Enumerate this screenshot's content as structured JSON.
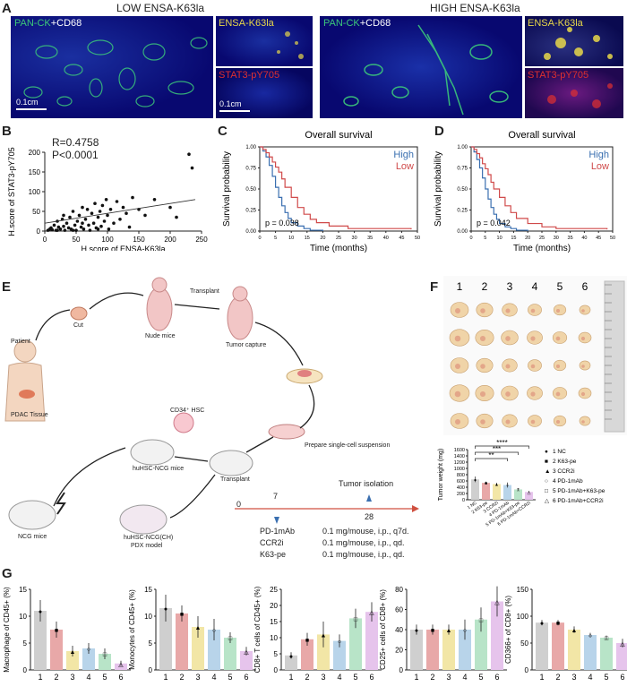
{
  "panel_labels": {
    "A": "A",
    "B": "B",
    "C": "C",
    "D": "D",
    "E": "E",
    "F": "F",
    "G": "G"
  },
  "panelA": {
    "low_title": "LOW ENSA-K63la",
    "high_title": "HIGH ENSA-K63la",
    "stain_pan_ck": "PAN-CK",
    "stain_cd68": "+CD68",
    "stain_ensa": "ENSA-K63la",
    "stain_stat3": "STAT3-pY705",
    "scale_label": "0.1cm",
    "colors": {
      "pan_ck": "#3cc87a",
      "cd68": "#ffffff",
      "ensa": "#e8d84a",
      "stat3": "#e03030",
      "bg": "#0a0a6e"
    }
  },
  "panelB": {
    "annotation_r": "R=0.4758",
    "annotation_p": "P<0.0001",
    "chart_data": {
      "type": "scatter",
      "xlabel": "H.score of ENSA-K63la",
      "ylabel": "H.score of STAT3-pY705",
      "xlim": [
        0,
        250
      ],
      "ylim": [
        0,
        200
      ],
      "xticks": [
        "0",
        "50",
        "100",
        "150",
        "200",
        "250"
      ],
      "yticks": [
        "0",
        "50",
        "100",
        "150",
        "200"
      ],
      "points": [
        [
          5,
          2
        ],
        [
          8,
          5
        ],
        [
          10,
          8
        ],
        [
          12,
          3
        ],
        [
          15,
          15
        ],
        [
          18,
          2
        ],
        [
          20,
          25
        ],
        [
          22,
          10
        ],
        [
          25,
          5
        ],
        [
          28,
          30
        ],
        [
          30,
          12
        ],
        [
          32,
          2
        ],
        [
          35,
          20
        ],
        [
          38,
          8
        ],
        [
          40,
          35
        ],
        [
          42,
          5
        ],
        [
          45,
          50
        ],
        [
          48,
          15
        ],
        [
          50,
          2
        ],
        [
          52,
          25
        ],
        [
          55,
          40
        ],
        [
          58,
          10
        ],
        [
          60,
          60
        ],
        [
          62,
          5
        ],
        [
          65,
          30
        ],
        [
          68,
          55
        ],
        [
          70,
          15
        ],
        [
          72,
          2
        ],
        [
          75,
          45
        ],
        [
          78,
          20
        ],
        [
          80,
          70
        ],
        [
          82,
          8
        ],
        [
          85,
          35
        ],
        [
          88,
          50
        ],
        [
          90,
          12
        ],
        [
          92,
          65
        ],
        [
          95,
          25
        ],
        [
          98,
          80
        ],
        [
          100,
          40
        ],
        [
          102,
          5
        ],
        [
          105,
          55
        ],
        [
          110,
          20
        ],
        [
          115,
          75
        ],
        [
          120,
          30
        ],
        [
          125,
          60
        ],
        [
          130,
          45
        ],
        [
          135,
          10
        ],
        [
          140,
          85
        ],
        [
          150,
          55
        ],
        [
          160,
          40
        ],
        [
          175,
          80
        ],
        [
          200,
          60
        ],
        [
          210,
          35
        ],
        [
          230,
          195
        ],
        [
          235,
          160
        ],
        [
          20,
          2
        ],
        [
          30,
          40
        ],
        [
          45,
          2
        ],
        [
          60,
          20
        ],
        [
          85,
          5
        ]
      ],
      "fit_line": [
        [
          0,
          20
        ],
        [
          240,
          80
        ]
      ]
    }
  },
  "panelC": {
    "chart_data": {
      "type": "line",
      "title": "Overall survival",
      "xlabel": "Time (months)",
      "ylabel": "Survival probability",
      "xlim": [
        0,
        50
      ],
      "ylim": [
        0,
        1
      ],
      "xticks": [
        "0",
        "5",
        "10",
        "15",
        "20",
        "25",
        "30",
        "35",
        "40",
        "45",
        "50"
      ],
      "yticks": [
        "0.00",
        "0.25",
        "0.50",
        "0.75",
        "1.00"
      ],
      "legend": [
        "High",
        "Low"
      ],
      "pvalue": "p = 0.038",
      "series": [
        {
          "name": "High",
          "color": "#3a6fb0",
          "x": [
            0,
            1,
            2,
            3,
            4,
            5,
            6,
            7,
            8,
            9,
            10,
            12,
            14,
            16,
            20
          ],
          "y": [
            1,
            0.95,
            0.88,
            0.78,
            0.65,
            0.52,
            0.4,
            0.3,
            0.22,
            0.15,
            0.1,
            0.06,
            0.03,
            0.01,
            0
          ]
        },
        {
          "name": "Low",
          "color": "#d04a4a",
          "x": [
            0,
            1,
            2,
            3,
            4,
            5,
            6,
            7,
            8,
            10,
            12,
            14,
            16,
            18,
            22,
            28,
            48
          ],
          "y": [
            1,
            0.97,
            0.93,
            0.88,
            0.82,
            0.76,
            0.7,
            0.62,
            0.52,
            0.4,
            0.28,
            0.2,
            0.14,
            0.1,
            0.06,
            0.03,
            0.02
          ]
        }
      ]
    }
  },
  "panelD": {
    "chart_data": {
      "type": "line",
      "title": "Overall survival",
      "xlabel": "Time (months)",
      "ylabel": "Survival probability",
      "xlim": [
        0,
        50
      ],
      "ylim": [
        0,
        1
      ],
      "xticks": [
        "0",
        "5",
        "10",
        "15",
        "20",
        "25",
        "30",
        "35",
        "40",
        "45",
        "50"
      ],
      "yticks": [
        "0.00",
        "0.25",
        "0.50",
        "0.75",
        "1.00"
      ],
      "legend": [
        "High",
        "Low"
      ],
      "pvalue": "p = 0.042",
      "series": [
        {
          "name": "High",
          "color": "#3a6fb0",
          "x": [
            0,
            1,
            2,
            3,
            4,
            5,
            6,
            7,
            8,
            9,
            10,
            12,
            14,
            16,
            20
          ],
          "y": [
            1,
            0.94,
            0.85,
            0.75,
            0.63,
            0.5,
            0.38,
            0.28,
            0.2,
            0.14,
            0.09,
            0.05,
            0.03,
            0.01,
            0
          ]
        },
        {
          "name": "Low",
          "color": "#d04a4a",
          "x": [
            0,
            1,
            2,
            3,
            4,
            5,
            6,
            7,
            8,
            10,
            12,
            14,
            16,
            20,
            25,
            30,
            48
          ],
          "y": [
            1,
            0.97,
            0.92,
            0.87,
            0.8,
            0.74,
            0.67,
            0.58,
            0.5,
            0.4,
            0.3,
            0.22,
            0.15,
            0.09,
            0.05,
            0.03,
            0.02
          ]
        }
      ]
    }
  },
  "panelE": {
    "patient": "Patient",
    "pdac": "PDAC Tissue",
    "cut": "Cut",
    "nude": "Nude mice",
    "transplant1": "Transplant",
    "tumor_capture": "Tumor capture",
    "cd34": "CD34⁺ HSC",
    "prepare": "Prepare single-cell suspension",
    "huhsc": "huHSC-NCG mice",
    "transplant2": "Transplant",
    "ncg": "NCG mice",
    "pdx1": "huHSC-NCG(CH)",
    "pdx2": "PDX model",
    "timeline_0": "0",
    "timeline_7": "7",
    "timeline_28": "28",
    "tumor_isolation": "Tumor isolation",
    "drugs": [
      {
        "name": "PD-1mAb",
        "dose": "0.1 mg/mouse, i.p., q7d."
      },
      {
        "name": "CCR2i",
        "dose": "0.1 mg/mouse, i.p., qd."
      },
      {
        "name": "K63-pe",
        "dose": "0.1 mg/mouse, i.p., qd."
      }
    ]
  },
  "panelF": {
    "columns": [
      "1",
      "2",
      "3",
      "4",
      "5",
      "6"
    ],
    "significance": [
      "**",
      "***",
      "****"
    ],
    "legend": [
      {
        "marker": "●",
        "label": "1 NC"
      },
      {
        "marker": "■",
        "label": "2 K63-pe"
      },
      {
        "marker": "▲",
        "label": "3 CCR2i"
      },
      {
        "marker": "○",
        "label": "4 PD-1mAb"
      },
      {
        "marker": "□",
        "label": "5 PD-1mAb+K63-pe"
      },
      {
        "marker": "△",
        "label": "6 PD-1mAb+CCR2i"
      }
    ],
    "chart_data": {
      "type": "bar",
      "ylabel": "Tumor weight (mg)",
      "ylim": [
        0,
        1600
      ],
      "yticks": [
        "0",
        "200",
        "400",
        "600",
        "800",
        "1000",
        "1200",
        "1400",
        "1600"
      ],
      "categories": [
        "1 NC",
        "2 K63-pe",
        "3 CCR2i",
        "4 PD-1mAb",
        "5 PD-1mAb+K63-pe",
        "6 PD-1mAb+CCR2i"
      ],
      "values": [
        650,
        540,
        500,
        470,
        330,
        250
      ],
      "errors": [
        90,
        40,
        40,
        80,
        40,
        30
      ],
      "colors": [
        "#cfcfcf",
        "#e8a8a8",
        "#f2e6a6",
        "#b8d4ea",
        "#b8e4c8",
        "#e6c4ec"
      ]
    }
  },
  "panelG": {
    "xticks": [
      "1",
      "2",
      "3",
      "4",
      "5",
      "6"
    ],
    "colors": [
      "#cfcfcf",
      "#e8a8a8",
      "#f2e6a6",
      "#b8d4ea",
      "#b8e4c8",
      "#e6c4ec"
    ],
    "chart_data": [
      {
        "type": "bar",
        "ylabel": "Macrophage of CD45+ (%)",
        "ylim": [
          0,
          15
        ],
        "yticks": [
          "0",
          "5",
          "10",
          "15"
        ],
        "categories": [
          "1",
          "2",
          "3",
          "4",
          "5",
          "6"
        ],
        "values": [
          11,
          7.5,
          3.5,
          4,
          3,
          1.2
        ],
        "errors": [
          2,
          1.5,
          1,
          1,
          1,
          0.5
        ]
      },
      {
        "type": "bar",
        "ylabel": "Monocytes of CD45+ (%)",
        "ylim": [
          0,
          15
        ],
        "yticks": [
          "0",
          "5",
          "10",
          "15"
        ],
        "categories": [
          "1",
          "2",
          "3",
          "4",
          "5",
          "6"
        ],
        "values": [
          11.5,
          10.5,
          8,
          7.5,
          6,
          3.5
        ],
        "errors": [
          2.5,
          1.5,
          2,
          2,
          1,
          0.8
        ]
      },
      {
        "type": "bar",
        "ylabel": "CD8+ T cells of CD45+ (%)",
        "ylim": [
          0,
          25
        ],
        "yticks": [
          "0",
          "5",
          "10",
          "15",
          "20",
          "25"
        ],
        "categories": [
          "1",
          "2",
          "3",
          "4",
          "5",
          "6"
        ],
        "values": [
          4.5,
          9.5,
          11,
          9,
          16,
          18
        ],
        "errors": [
          1,
          2,
          4,
          2,
          3,
          3
        ]
      },
      {
        "type": "bar",
        "ylabel": "CD25+ cells of CD8+ (%)",
        "ylim": [
          0,
          80
        ],
        "yticks": [
          "0",
          "20",
          "40",
          "60",
          "80"
        ],
        "categories": [
          "1",
          "2",
          "3",
          "4",
          "5",
          "6"
        ],
        "values": [
          40,
          40,
          40,
          40,
          50,
          68
        ],
        "errors": [
          5,
          5,
          5,
          10,
          12,
          15
        ]
      },
      {
        "type": "bar",
        "ylabel": "CD366+ of CD8+ (%)",
        "ylim": [
          0,
          150
        ],
        "yticks": [
          "0",
          "50",
          "100",
          "150"
        ],
        "categories": [
          "1",
          "2",
          "3",
          "4",
          "5",
          "6"
        ],
        "values": [
          88,
          88,
          75,
          65,
          60,
          50
        ],
        "errors": [
          5,
          5,
          6,
          4,
          4,
          8
        ]
      }
    ]
  }
}
